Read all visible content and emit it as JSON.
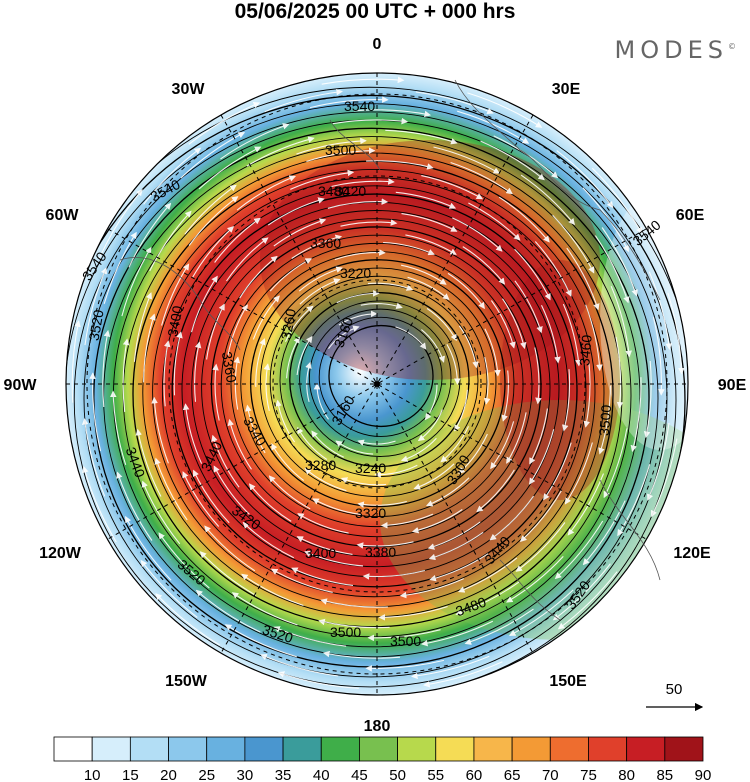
{
  "header": {
    "title": "05/06/2025  00 UTC  + 000 hrs",
    "brand": "MODES",
    "brand_mark": "©"
  },
  "map": {
    "projection": "north-polar-stereographic",
    "center_label": "0",
    "longitude_labels": [
      "0",
      "30E",
      "60E",
      "90E",
      "120E",
      "150E",
      "180",
      "150W",
      "120W",
      "90W",
      "60W",
      "30W"
    ],
    "contour_labels": [
      "3540",
      "3540",
      "3540",
      "3540",
      "3520",
      "3520",
      "3520",
      "3520",
      "3500",
      "3500",
      "3500",
      "3500",
      "3480",
      "3480",
      "3460",
      "3440",
      "3440",
      "3440",
      "3420",
      "3420",
      "3400",
      "3400",
      "3380",
      "3360",
      "3360",
      "3340",
      "3320",
      "3300",
      "3280",
      "3260",
      "3240",
      "3220",
      "3160",
      "3160"
    ],
    "wind_reference_value": "50"
  },
  "colors": {
    "blue_low": "#d6eefb",
    "blue_mid": "#6fb3e0",
    "green": "#3fae49",
    "yellow": "#f5dc55",
    "orange": "#f39a35",
    "red": "#d9252a",
    "dark_red": "#a01319"
  },
  "colorbar": {
    "labels": [
      "10",
      "15",
      "20",
      "25",
      "30",
      "35",
      "40",
      "45",
      "50",
      "55",
      "60",
      "65",
      "70",
      "75",
      "80",
      "85",
      "90"
    ],
    "colors": [
      "#ffffff",
      "#d6eefb",
      "#b3def5",
      "#8cc8ec",
      "#68b1e0",
      "#4a96cf",
      "#3a9c9b",
      "#3fae49",
      "#78c04f",
      "#b7d94c",
      "#f5dc55",
      "#f7b64a",
      "#f39a35",
      "#ee6d2f",
      "#e0402b",
      "#c71e24",
      "#a01319"
    ]
  }
}
